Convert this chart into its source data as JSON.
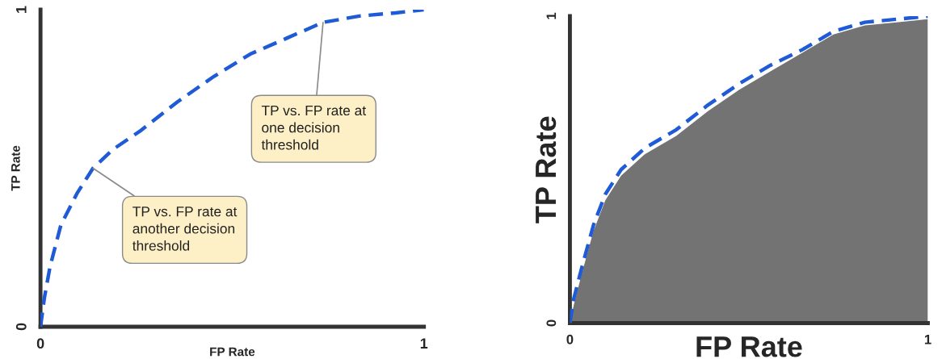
{
  "chart_data": [
    {
      "type": "line",
      "xlabel": "FP Rate",
      "ylabel": "TP Rate",
      "xlim": [
        0,
        1
      ],
      "ylim": [
        0,
        1
      ],
      "xticks": [
        0,
        1
      ],
      "yticks": [
        0,
        1
      ],
      "grid": false,
      "legend": false,
      "line_style": "dashed",
      "marker": "none",
      "x": [
        0,
        0.01,
        0.025,
        0.053,
        0.095,
        0.137,
        0.19,
        0.263,
        0.358,
        0.453,
        0.547,
        0.642,
        0.737,
        0.832,
        0.926,
        1
      ],
      "series": [
        {
          "color": "#1f5bd6",
          "values": [
            0,
            0.09,
            0.19,
            0.32,
            0.42,
            0.5,
            0.56,
            0.62,
            0.71,
            0.79,
            0.86,
            0.91,
            0.96,
            0.98,
            0.99,
            1
          ]
        }
      ],
      "annotations": [
        {
          "text": "TP vs. FP rate at\none decision\nthreshold",
          "x": 0.737,
          "y": 0.96
        },
        {
          "text": "TP vs. FP rate at\nanother decision\nthreshold",
          "x": 0.137,
          "y": 0.5
        }
      ]
    },
    {
      "type": "line",
      "xlabel": "FP Rate",
      "ylabel": "TP Rate",
      "xlim": [
        0,
        1
      ],
      "ylim": [
        0,
        1
      ],
      "xticks": [
        0,
        1
      ],
      "yticks": [
        0,
        1
      ],
      "grid": false,
      "legend": false,
      "line_style": "dashed",
      "marker": "none",
      "x": [
        0,
        0.011,
        0.033,
        0.066,
        0.099,
        0.143,
        0.209,
        0.297,
        0.385,
        0.473,
        0.56,
        0.648,
        0.736,
        0.824,
        0.912,
        1
      ],
      "series": [
        {
          "type": "area",
          "color": "#737373",
          "values": [
            0,
            0.06,
            0.16,
            0.3,
            0.4,
            0.48,
            0.55,
            0.61,
            0.69,
            0.76,
            0.82,
            0.88,
            0.94,
            0.97,
            0.98,
            0.99
          ]
        },
        {
          "type": "line",
          "color": "#1f5bd6",
          "values": [
            0,
            0.08,
            0.18,
            0.32,
            0.42,
            0.5,
            0.57,
            0.63,
            0.71,
            0.78,
            0.84,
            0.89,
            0.95,
            0.98,
            0.99,
            1
          ]
        }
      ]
    }
  ]
}
